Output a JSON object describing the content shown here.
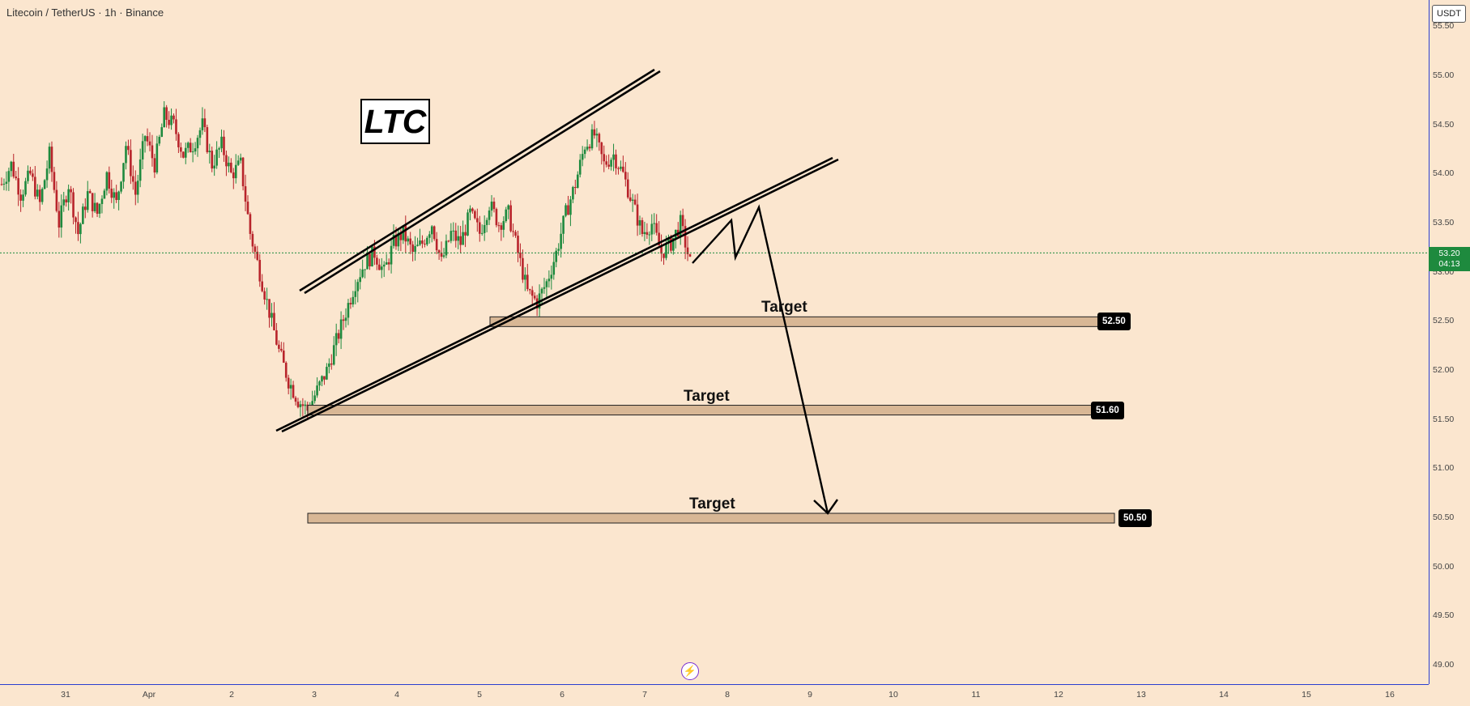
{
  "header": {
    "title": "Litecoin / TetherUS · 1h · Binance",
    "ticker": "LTC",
    "currency": "USDT"
  },
  "current_price": {
    "value": "53.20",
    "countdown": "04:13",
    "color": "#1e8a3e"
  },
  "targets": [
    {
      "label": "Target",
      "price": "52.50"
    },
    {
      "label": "Target",
      "price": "51.60"
    },
    {
      "label": "Target",
      "price": "50.50"
    }
  ],
  "icons": {
    "bottom": "lightning-bolt-icon"
  },
  "colors": {
    "background": "#fbe6cf",
    "up": "#1e8a3e",
    "down": "#b8242b",
    "zone_fill": "#d8b795",
    "axis_line": "#2a3fd0"
  },
  "chart_data": {
    "type": "candlestick",
    "title": "Litecoin / TetherUS · 1h · Binance",
    "symbol": "LTC",
    "price_axis": {
      "ticks": [
        "55.50",
        "55.00",
        "54.50",
        "54.00",
        "53.50",
        "53.00",
        "52.50",
        "52.00",
        "51.50",
        "51.00",
        "50.50",
        "50.00",
        "49.50",
        "49.00"
      ],
      "range": [
        48.85,
        55.65
      ]
    },
    "time_axis": {
      "ticks": [
        "31",
        "Apr",
        "2",
        "3",
        "4",
        "5",
        "6",
        "7",
        "8",
        "9",
        "10",
        "11",
        "12",
        "13",
        "14",
        "15",
        "16"
      ]
    },
    "current_price": 53.2,
    "horizontal_levels": [
      52.5,
      51.6,
      50.5
    ],
    "channel": {
      "upper_line": [
        {
          "x": "Apr 3 ~0:00",
          "y": 52.8
        },
        {
          "x": "Apr 7 ~4:00",
          "y": 55.1
        }
      ],
      "lower_line": [
        {
          "x": "Apr 2 ~12:00",
          "y": 51.45
        },
        {
          "x": "Apr 9 ~9:00",
          "y": 54.15
        }
      ]
    },
    "projected_path": [
      53.05,
      53.55,
      53.15,
      53.7,
      50.5
    ],
    "price_path": [
      53.9,
      54.1,
      53.8,
      54.0,
      53.7,
      54.2,
      53.5,
      53.9,
      53.4,
      53.8,
      53.6,
      54.0,
      53.7,
      54.3,
      53.8,
      54.4,
      54.1,
      54.6,
      54.5,
      54.2,
      54.3,
      54.5,
      54.1,
      54.3,
      54.0,
      54.1,
      53.4,
      53.0,
      52.6,
      52.2,
      51.9,
      51.7,
      51.6,
      51.8,
      52.0,
      52.3,
      52.6,
      52.9,
      53.1,
      53.2,
      53.0,
      53.3,
      53.4,
      53.2,
      53.3,
      53.5,
      53.1,
      53.4,
      53.3,
      53.6,
      53.4,
      53.7,
      53.5,
      53.6,
      53.2,
      52.8,
      52.7,
      52.9,
      53.2,
      53.6,
      53.9,
      54.3,
      54.4,
      54.1,
      54.2,
      54.0,
      53.7,
      53.4,
      53.5,
      53.2,
      53.3,
      53.5,
      53.1
    ]
  }
}
